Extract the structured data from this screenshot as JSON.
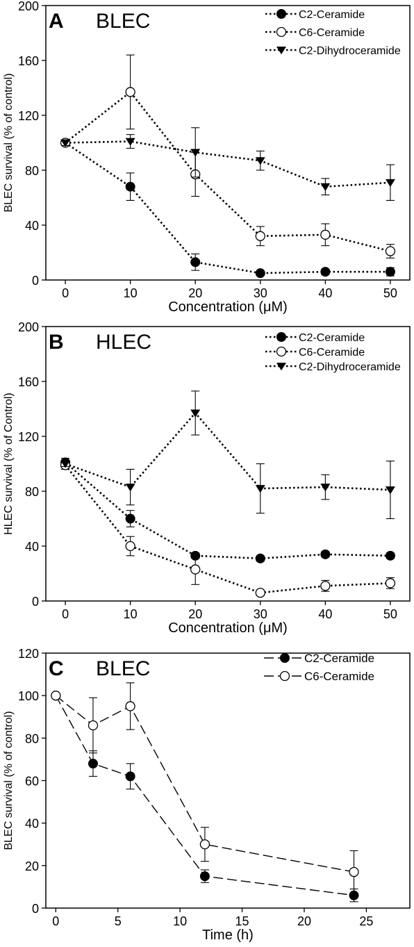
{
  "chart_data": [
    {
      "type": "line",
      "panel_letter": "A",
      "title": "BLEC",
      "xlabel": "Concentration (μM)",
      "ylabel": "BLEC survival (% of control)",
      "xlim": [
        -3,
        53
      ],
      "ylim": [
        0,
        200
      ],
      "xticks": [
        0,
        10,
        20,
        30,
        40,
        50
      ],
      "yticks": [
        0,
        40,
        80,
        120,
        160,
        200
      ],
      "x": [
        0,
        10,
        20,
        30,
        40,
        50
      ],
      "legend_position": "top-right",
      "line_style": "dotted",
      "series": [
        {
          "name": "C2-Ceramide",
          "marker": "filled-circle",
          "values": [
            100,
            68,
            13,
            5,
            6,
            6
          ],
          "errors": [
            2,
            10,
            6,
            1,
            2,
            3
          ]
        },
        {
          "name": "C6-Ceramide",
          "marker": "open-circle",
          "values": [
            100,
            137,
            77,
            32,
            33,
            21
          ],
          "errors": [
            2,
            27,
            16,
            7,
            8,
            5
          ]
        },
        {
          "name": "C2-Dihydroceramide",
          "marker": "filled-triangle-down",
          "values": [
            100,
            101,
            93,
            87,
            68,
            71
          ],
          "errors": [
            2,
            5,
            18,
            7,
            6,
            13
          ]
        }
      ]
    },
    {
      "type": "line",
      "panel_letter": "B",
      "title": "HLEC",
      "xlabel": "Concentration (μM)",
      "ylabel": "HLEC survival (% of Control)",
      "xlim": [
        -3,
        53
      ],
      "ylim": [
        0,
        200
      ],
      "xticks": [
        0,
        10,
        20,
        30,
        40,
        50
      ],
      "yticks": [
        0,
        40,
        80,
        120,
        160,
        200
      ],
      "x": [
        0,
        10,
        20,
        30,
        40,
        50
      ],
      "legend_position": "top-right",
      "line_style": "dotted",
      "series": [
        {
          "name": "C2-Ceramide",
          "marker": "filled-circle",
          "values": [
            101,
            60,
            33,
            31,
            34,
            33
          ],
          "errors": [
            3,
            6,
            2,
            2,
            2,
            2
          ]
        },
        {
          "name": "C6-Ceramide",
          "marker": "open-circle",
          "values": [
            99,
            40,
            23,
            6,
            11,
            13
          ],
          "errors": [
            3,
            7,
            11,
            2,
            4,
            4
          ]
        },
        {
          "name": "C2-Dihydroceramide",
          "marker": "filled-triangle-down",
          "values": [
            100,
            83,
            137,
            82,
            83,
            81
          ],
          "errors": [
            2,
            13,
            16,
            18,
            9,
            21
          ]
        }
      ]
    },
    {
      "type": "line",
      "panel_letter": "C",
      "title": "BLEC",
      "xlabel": "Time (h)",
      "ylabel": "BLEC survival (% of control)",
      "xlim": [
        -0.8,
        28.5
      ],
      "ylim": [
        0,
        120
      ],
      "xticks": [
        0,
        5,
        10,
        15,
        20,
        25
      ],
      "yticks": [
        0,
        20,
        40,
        60,
        80,
        100,
        120
      ],
      "x": [
        0,
        3,
        6,
        12,
        24
      ],
      "legend_position": "top-right",
      "line_style": "dashed",
      "series": [
        {
          "name": "C2-Ceramide",
          "marker": "filled-circle",
          "values": [
            100,
            68,
            62,
            15,
            6
          ],
          "errors": [
            1,
            6,
            6,
            3,
            3
          ]
        },
        {
          "name": "C6-Ceramide",
          "marker": "open-circle",
          "values": [
            100,
            86,
            95,
            30,
            17
          ],
          "errors": [
            1,
            13,
            11,
            8,
            10
          ]
        }
      ]
    }
  ]
}
